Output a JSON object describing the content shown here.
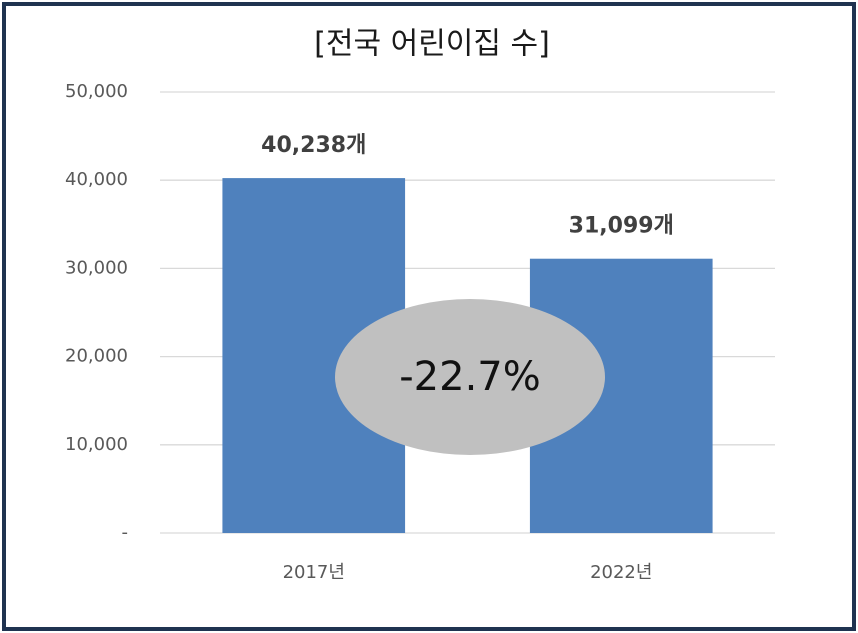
{
  "chart_data": {
    "type": "bar",
    "title": "[전국 어린이집 수]",
    "categories": [
      "2017년",
      "2022년"
    ],
    "values": [
      40238,
      31099
    ],
    "value_labels": [
      "40,238개",
      "31,099개"
    ],
    "color": "#4f81bd",
    "ylim": [
      0,
      50000
    ],
    "yticks": [
      {
        "value": 0,
        "label": "-"
      },
      {
        "value": 10000,
        "label": "10,000"
      },
      {
        "value": 20000,
        "label": "20,000"
      },
      {
        "value": 30000,
        "label": "30,000"
      },
      {
        "value": 40000,
        "label": "40,000"
      },
      {
        "value": 50000,
        "label": "50,000"
      }
    ],
    "grid": true,
    "annotation": "-22.7%"
  }
}
